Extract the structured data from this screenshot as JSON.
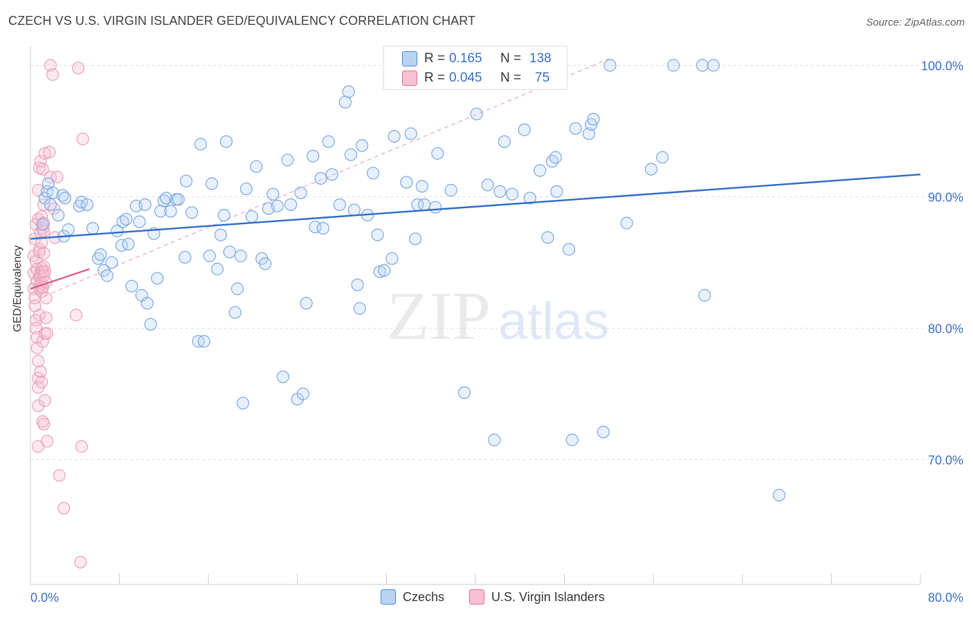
{
  "title": "CZECH VS U.S. VIRGIN ISLANDER GED/EQUIVALENCY CORRELATION CHART",
  "source": "Source: ZipAtlas.com",
  "watermark": {
    "zip": "ZIP",
    "atlas": "atlas"
  },
  "colors": {
    "blue": "#4a86d8",
    "blue_fill": "#b9d3f3",
    "pink": "#e36c95",
    "pink_fill": "#f7c1d3",
    "axis_text": "#3a6fc4",
    "grid": "#dedede"
  },
  "legend_box": {
    "rows": [
      {
        "swatch": "blue",
        "r_label": "R =",
        "r_value": "0.165",
        "n_label": "N =",
        "n_value": "138"
      },
      {
        "swatch": "pink",
        "r_label": "R =",
        "r_value": "0.045",
        "n_label": "N =",
        "n_value": "75"
      }
    ]
  },
  "legend_bottom": [
    {
      "label": "Czechs",
      "swatch": "blue"
    },
    {
      "label": "U.S. Virgin Islanders",
      "swatch": "pink"
    }
  ],
  "chart_data": {
    "type": "scatter",
    "title": "CZECH VS U.S. VIRGIN ISLANDER GED/EQUIVALENCY CORRELATION CHART",
    "xlabel": "",
    "ylabel": "GED/Equivalency",
    "xlim": [
      0,
      80
    ],
    "ylim": [
      60.5,
      101.5
    ],
    "x_tick_labels": [
      "0.0%",
      "80.0%"
    ],
    "y_ticks": [
      70,
      80,
      90,
      100
    ],
    "y_tick_labels": [
      "70.0%",
      "80.0%",
      "90.0%",
      "100.0%"
    ],
    "grid": "horizontal dashed",
    "legend_position": "top-center",
    "series": [
      {
        "name": "Czechs",
        "color": "#4a86d8",
        "trend": {
          "x": [
            0,
            80
          ],
          "y": [
            86.8,
            91.7
          ],
          "style": "solid"
        },
        "points": [
          [
            1.1,
            87.9
          ],
          [
            1.3,
            89.9
          ],
          [
            1.5,
            90.4
          ],
          [
            1.6,
            91.0
          ],
          [
            1.8,
            89.4
          ],
          [
            2.0,
            90.3
          ],
          [
            2.5,
            88.6
          ],
          [
            2.9,
            90.1
          ],
          [
            3.0,
            87.0
          ],
          [
            3.1,
            89.9
          ],
          [
            3.4,
            87.5
          ],
          [
            4.4,
            89.3
          ],
          [
            4.6,
            89.6
          ],
          [
            5.1,
            89.4
          ],
          [
            5.6,
            87.6
          ],
          [
            6.1,
            85.3
          ],
          [
            6.3,
            85.6
          ],
          [
            6.6,
            84.4
          ],
          [
            6.9,
            84.0
          ],
          [
            7.3,
            85.0
          ],
          [
            7.8,
            87.4
          ],
          [
            8.2,
            86.3
          ],
          [
            8.3,
            88.1
          ],
          [
            8.6,
            88.3
          ],
          [
            8.8,
            86.4
          ],
          [
            9.1,
            83.2
          ],
          [
            9.5,
            89.3
          ],
          [
            9.8,
            88.1
          ],
          [
            10.0,
            82.5
          ],
          [
            10.3,
            89.4
          ],
          [
            10.5,
            81.9
          ],
          [
            10.8,
            80.3
          ],
          [
            11.1,
            87.2
          ],
          [
            11.4,
            83.8
          ],
          [
            11.7,
            88.9
          ],
          [
            12.0,
            89.7
          ],
          [
            12.2,
            89.9
          ],
          [
            12.6,
            88.9
          ],
          [
            13.1,
            89.8
          ],
          [
            13.3,
            89.8
          ],
          [
            13.9,
            85.4
          ],
          [
            14.0,
            91.2
          ],
          [
            14.5,
            88.8
          ],
          [
            15.1,
            79.0
          ],
          [
            15.3,
            94.0
          ],
          [
            15.6,
            79.0
          ],
          [
            16.1,
            85.5
          ],
          [
            16.3,
            91.0
          ],
          [
            16.8,
            84.5
          ],
          [
            17.1,
            87.1
          ],
          [
            17.4,
            88.6
          ],
          [
            17.6,
            94.2
          ],
          [
            17.9,
            85.8
          ],
          [
            18.4,
            81.2
          ],
          [
            18.6,
            83.0
          ],
          [
            18.9,
            85.5
          ],
          [
            19.1,
            74.3
          ],
          [
            19.4,
            90.6
          ],
          [
            19.9,
            88.5
          ],
          [
            20.3,
            92.3
          ],
          [
            20.8,
            85.3
          ],
          [
            21.1,
            84.9
          ],
          [
            21.4,
            89.1
          ],
          [
            21.8,
            90.2
          ],
          [
            22.2,
            89.3
          ],
          [
            22.7,
            76.3
          ],
          [
            23.1,
            92.8
          ],
          [
            23.4,
            89.4
          ],
          [
            24.0,
            74.6
          ],
          [
            24.3,
            90.3
          ],
          [
            24.5,
            75.0
          ],
          [
            24.8,
            81.9
          ],
          [
            25.4,
            93.1
          ],
          [
            25.6,
            87.7
          ],
          [
            26.1,
            91.4
          ],
          [
            26.3,
            87.6
          ],
          [
            26.8,
            94.2
          ],
          [
            27.1,
            91.7
          ],
          [
            27.8,
            89.4
          ],
          [
            28.3,
            97.2
          ],
          [
            28.6,
            98.0
          ],
          [
            28.8,
            93.2
          ],
          [
            29.1,
            89.0
          ],
          [
            29.4,
            83.3
          ],
          [
            29.6,
            81.5
          ],
          [
            29.8,
            93.9
          ],
          [
            30.3,
            88.6
          ],
          [
            30.8,
            91.8
          ],
          [
            31.2,
            87.1
          ],
          [
            31.4,
            84.3
          ],
          [
            31.8,
            84.4
          ],
          [
            32.5,
            85.3
          ],
          [
            32.7,
            94.6
          ],
          [
            33.1,
            98.6
          ],
          [
            33.8,
            91.1
          ],
          [
            34.2,
            94.8
          ],
          [
            34.6,
            86.8
          ],
          [
            34.8,
            89.4
          ],
          [
            35.2,
            90.8
          ],
          [
            35.4,
            89.4
          ],
          [
            36.4,
            89.2
          ],
          [
            36.6,
            93.3
          ],
          [
            37.3,
            100.0
          ],
          [
            37.8,
            90.5
          ],
          [
            39.0,
            75.1
          ],
          [
            40.1,
            96.3
          ],
          [
            41.1,
            90.9
          ],
          [
            41.7,
            71.5
          ],
          [
            42.2,
            90.4
          ],
          [
            42.6,
            94.2
          ],
          [
            43.3,
            90.2
          ],
          [
            44.4,
            95.1
          ],
          [
            44.9,
            89.9
          ],
          [
            45.8,
            92.0
          ],
          [
            46.5,
            86.9
          ],
          [
            46.9,
            92.7
          ],
          [
            47.2,
            93.0
          ],
          [
            47.3,
            90.4
          ],
          [
            48.4,
            86.0
          ],
          [
            48.7,
            71.5
          ],
          [
            49.0,
            95.2
          ],
          [
            50.2,
            94.8
          ],
          [
            50.4,
            95.5
          ],
          [
            50.6,
            95.9
          ],
          [
            51.5,
            72.1
          ],
          [
            52.1,
            100.0
          ],
          [
            53.6,
            88.0
          ],
          [
            55.8,
            92.1
          ],
          [
            56.8,
            93.0
          ],
          [
            57.8,
            100.0
          ],
          [
            60.4,
            100.0
          ],
          [
            60.6,
            82.5
          ],
          [
            61.4,
            100.0
          ],
          [
            67.3,
            67.3
          ]
        ]
      },
      {
        "name": "U.S. Virgin Islanders",
        "color": "#e36c95",
        "trend": {
          "x": [
            0,
            5.3
          ],
          "y": [
            83.0,
            84.5
          ],
          "style": "solid"
        },
        "reference_line": {
          "x": [
            0,
            52
          ],
          "y": [
            82.0,
            100.5
          ],
          "style": "dashed"
        },
        "points": [
          [
            0.3,
            85.5
          ],
          [
            0.3,
            84.2
          ],
          [
            0.3,
            83.0
          ],
          [
            0.4,
            82.3
          ],
          [
            0.4,
            81.7
          ],
          [
            0.4,
            86.8
          ],
          [
            0.5,
            85.1
          ],
          [
            0.5,
            80.6
          ],
          [
            0.5,
            80.0
          ],
          [
            0.5,
            87.9
          ],
          [
            0.6,
            84.5
          ],
          [
            0.6,
            83.6
          ],
          [
            0.6,
            79.3
          ],
          [
            0.6,
            78.5
          ],
          [
            0.7,
            90.5
          ],
          [
            0.7,
            88.3
          ],
          [
            0.7,
            77.5
          ],
          [
            0.7,
            76.2
          ],
          [
            0.7,
            75.5
          ],
          [
            0.7,
            74.1
          ],
          [
            0.7,
            71.0
          ],
          [
            0.8,
            92.2
          ],
          [
            0.8,
            86.0
          ],
          [
            0.8,
            85.8
          ],
          [
            0.8,
            83.9
          ],
          [
            0.8,
            83.0
          ],
          [
            0.8,
            81.0
          ],
          [
            0.9,
            92.7
          ],
          [
            0.9,
            87.3
          ],
          [
            0.9,
            84.2
          ],
          [
            0.9,
            84.0
          ],
          [
            0.9,
            83.2
          ],
          [
            0.9,
            76.7
          ],
          [
            1.0,
            88.5
          ],
          [
            1.0,
            86.5
          ],
          [
            1.0,
            84.6
          ],
          [
            1.0,
            83.4
          ],
          [
            1.0,
            82.8
          ],
          [
            1.0,
            75.9
          ],
          [
            1.1,
            92.1
          ],
          [
            1.1,
            87.6
          ],
          [
            1.1,
            84.3
          ],
          [
            1.1,
            83.1
          ],
          [
            1.1,
            79.0
          ],
          [
            1.1,
            72.9
          ],
          [
            1.2,
            89.4
          ],
          [
            1.2,
            88.0
          ],
          [
            1.2,
            87.4
          ],
          [
            1.2,
            85.7
          ],
          [
            1.2,
            84.7
          ],
          [
            1.2,
            84.0
          ],
          [
            1.2,
            72.7
          ],
          [
            1.3,
            93.3
          ],
          [
            1.3,
            84.3
          ],
          [
            1.3,
            79.6
          ],
          [
            1.3,
            74.5
          ],
          [
            1.4,
            83.5
          ],
          [
            1.4,
            82.3
          ],
          [
            1.4,
            80.8
          ],
          [
            1.5,
            79.6
          ],
          [
            1.5,
            71.4
          ],
          [
            1.7,
            93.4
          ],
          [
            1.8,
            100.0
          ],
          [
            1.8,
            91.5
          ],
          [
            2.0,
            99.3
          ],
          [
            2.1,
            89.1
          ],
          [
            2.2,
            86.9
          ],
          [
            2.4,
            91.5
          ],
          [
            2.6,
            68.8
          ],
          [
            3.0,
            66.3
          ],
          [
            4.1,
            81.0
          ],
          [
            4.3,
            99.8
          ],
          [
            4.6,
            71.0
          ],
          [
            4.7,
            94.4
          ],
          [
            4.5,
            62.2
          ]
        ]
      }
    ]
  }
}
